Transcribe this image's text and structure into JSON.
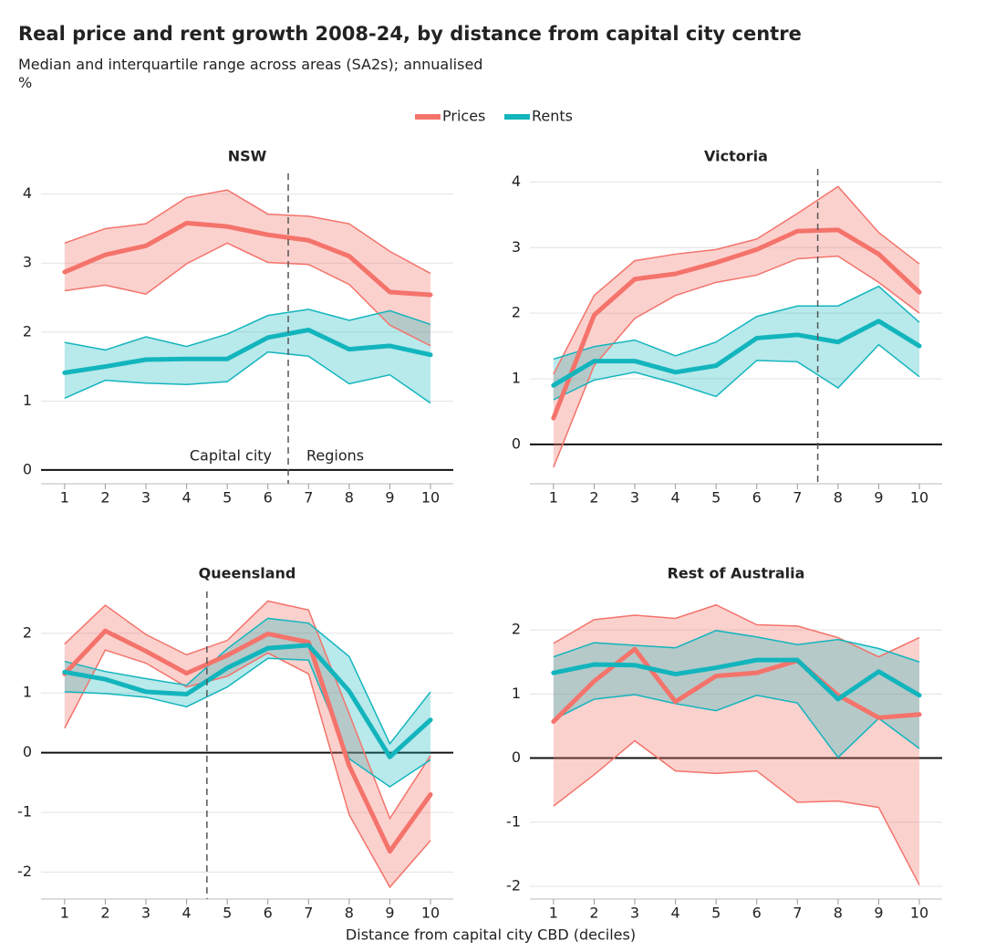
{
  "title": "Real price and rent growth 2008-24, by distance from capital city centre",
  "subtitle": "Median and interquartile range across areas (SA2s); annualised",
  "y_unit": "%",
  "x_label": "Distance from capital city CBD (deciles)",
  "legend": [
    {
      "name": "Prices",
      "color": "#f4736b"
    },
    {
      "name": "Rents",
      "color": "#13b5bd"
    }
  ],
  "chart_data": [
    {
      "type": "line",
      "title": "NSW",
      "x": [
        1,
        2,
        3,
        4,
        5,
        6,
        7,
        8,
        9,
        10
      ],
      "xlim": [
        0.42,
        10.56
      ],
      "xticks": [
        1,
        2,
        3,
        4,
        5,
        6,
        7,
        8,
        9,
        10
      ],
      "ylim": [
        -0.2,
        4.3
      ],
      "yticks": [
        0,
        1,
        2,
        3,
        4
      ],
      "divider": 6.5,
      "annotations": [
        "Capital city",
        "Regions"
      ],
      "series": [
        {
          "values": [
            2.87,
            3.12,
            3.25,
            3.58,
            3.53,
            3.41,
            3.33,
            3.1,
            2.58,
            2.54
          ],
          "low": [
            2.6,
            2.68,
            2.55,
            2.99,
            3.29,
            3.01,
            2.98,
            2.69,
            2.1,
            1.8
          ],
          "high": [
            3.29,
            3.5,
            3.57,
            3.95,
            4.06,
            3.71,
            3.68,
            3.57,
            3.17,
            2.85
          ]
        },
        {
          "values": [
            1.41,
            1.5,
            1.6,
            1.61,
            1.61,
            1.92,
            2.03,
            1.75,
            1.8,
            1.67
          ],
          "low": [
            1.04,
            1.3,
            1.26,
            1.24,
            1.28,
            1.71,
            1.65,
            1.25,
            1.38,
            0.97
          ],
          "high": [
            1.85,
            1.74,
            1.93,
            1.79,
            1.97,
            2.24,
            2.33,
            2.17,
            2.31,
            2.11
          ]
        }
      ]
    },
    {
      "type": "line",
      "title": "Victoria",
      "x": [
        1,
        2,
        3,
        4,
        5,
        6,
        7,
        8,
        9,
        10
      ],
      "xlim": [
        0.42,
        10.56
      ],
      "xticks": [
        1,
        2,
        3,
        4,
        5,
        6,
        7,
        8,
        9,
        10
      ],
      "ylim": [
        -0.6,
        4.2
      ],
      "yticks": [
        0,
        1,
        2,
        3,
        4
      ],
      "divider": 7.5,
      "series": [
        {
          "values": [
            0.4,
            1.97,
            2.52,
            2.6,
            2.77,
            2.97,
            3.25,
            3.27,
            2.9,
            2.32
          ],
          "low": [
            -0.35,
            1.2,
            1.92,
            2.27,
            2.47,
            2.58,
            2.83,
            2.87,
            2.47,
            2.0
          ],
          "high": [
            1.07,
            2.27,
            2.8,
            2.9,
            2.97,
            3.13,
            3.52,
            3.93,
            3.23,
            2.75
          ]
        },
        {
          "values": [
            0.9,
            1.27,
            1.27,
            1.1,
            1.2,
            1.62,
            1.67,
            1.56,
            1.88,
            1.5
          ],
          "low": [
            0.68,
            0.98,
            1.1,
            0.93,
            0.73,
            1.28,
            1.26,
            0.86,
            1.52,
            1.03
          ],
          "high": [
            1.3,
            1.49,
            1.59,
            1.35,
            1.56,
            1.95,
            2.11,
            2.11,
            2.41,
            1.86
          ]
        }
      ]
    },
    {
      "type": "line",
      "title": "Queensland",
      "x": [
        1,
        2,
        3,
        4,
        5,
        6,
        7,
        8,
        9,
        10
      ],
      "xlim": [
        0.42,
        10.56
      ],
      "xticks": [
        1,
        2,
        3,
        4,
        5,
        6,
        7,
        8,
        9,
        10
      ],
      "ylim": [
        -2.45,
        2.7
      ],
      "yticks": [
        -2,
        -1,
        0,
        1,
        2
      ],
      "divider": 4.5,
      "series": [
        {
          "values": [
            1.32,
            2.04,
            1.7,
            1.33,
            1.63,
            1.99,
            1.85,
            -0.22,
            -1.65,
            -0.7
          ],
          "low": [
            0.41,
            1.72,
            1.5,
            1.1,
            1.28,
            1.67,
            1.32,
            -1.04,
            -2.25,
            -1.47
          ],
          "high": [
            1.82,
            2.47,
            1.98,
            1.64,
            1.88,
            2.54,
            2.39,
            0.65,
            -1.1,
            -0.05
          ]
        },
        {
          "values": [
            1.35,
            1.23,
            1.02,
            0.98,
            1.42,
            1.75,
            1.8,
            1.03,
            -0.07,
            0.55
          ],
          "low": [
            1.02,
            0.99,
            0.93,
            0.77,
            1.1,
            1.58,
            1.55,
            -0.1,
            -0.57,
            -0.12
          ],
          "high": [
            1.53,
            1.36,
            1.24,
            1.13,
            1.74,
            2.25,
            2.17,
            1.61,
            0.15,
            1.02
          ]
        }
      ]
    },
    {
      "type": "line",
      "title": "Rest of Australia",
      "x": [
        1,
        2,
        3,
        4,
        5,
        6,
        7,
        8,
        9,
        10
      ],
      "xlim": [
        0.42,
        10.56
      ],
      "xticks": [
        1,
        2,
        3,
        4,
        5,
        6,
        7,
        8,
        9,
        10
      ],
      "ylim": [
        -2.2,
        2.6
      ],
      "yticks": [
        -2,
        -1,
        0,
        1,
        2
      ],
      "series": [
        {
          "values": [
            0.57,
            1.2,
            1.7,
            0.88,
            1.28,
            1.33,
            1.52,
            0.98,
            0.63,
            0.68
          ],
          "low": [
            -0.75,
            -0.26,
            0.27,
            -0.2,
            -0.24,
            -0.2,
            -0.69,
            -0.67,
            -0.77,
            -1.98
          ],
          "high": [
            1.79,
            2.16,
            2.23,
            2.18,
            2.39,
            2.08,
            2.06,
            1.88,
            1.58,
            1.88
          ]
        },
        {
          "values": [
            1.33,
            1.46,
            1.45,
            1.31,
            1.41,
            1.53,
            1.53,
            0.92,
            1.35,
            0.98
          ],
          "low": [
            0.6,
            0.92,
            0.99,
            0.85,
            0.74,
            0.98,
            0.86,
            0.01,
            0.62,
            0.15
          ],
          "high": [
            1.58,
            1.8,
            1.76,
            1.72,
            1.99,
            1.89,
            1.77,
            1.85,
            1.71,
            1.5
          ]
        }
      ]
    }
  ]
}
